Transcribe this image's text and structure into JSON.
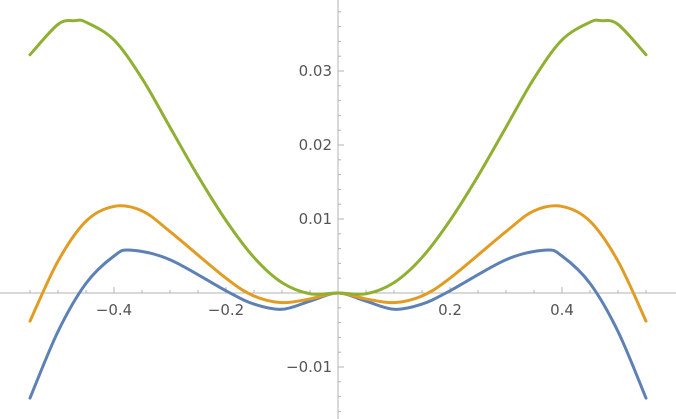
{
  "chart_data": {
    "type": "line",
    "title": "",
    "xlabel": "",
    "ylabel": "",
    "xlim": [
      -0.55,
      0.55
    ],
    "ylim": [
      -0.0165,
      0.0395
    ],
    "grid": false,
    "x_ticks": [
      {
        "value": -0.4,
        "label": "−0.4"
      },
      {
        "value": -0.2,
        "label": "−0.2"
      },
      {
        "value": 0.2,
        "label": "0.2"
      },
      {
        "value": 0.4,
        "label": "0.4"
      }
    ],
    "y_ticks": [
      {
        "value": -0.01,
        "label": "−0.01"
      },
      {
        "value": 0.01,
        "label": "0.01"
      },
      {
        "value": 0.02,
        "label": "0.02"
      },
      {
        "value": 0.03,
        "label": "0.03"
      }
    ],
    "series": [
      {
        "color": "#5e81b5",
        "x": [
          -0.55,
          -0.5,
          -0.45,
          -0.4,
          -0.37,
          -0.3,
          -0.2,
          -0.15,
          -0.1,
          -0.05,
          0,
          0.05,
          0.1,
          0.15,
          0.2,
          0.3,
          0.37,
          0.4,
          0.45,
          0.5,
          0.55
        ],
        "y": [
          -0.0142,
          -0.0052,
          0.0013,
          0.005,
          0.0058,
          0.0045,
          0.0003,
          -0.0015,
          -0.0022,
          -0.0011,
          0,
          -0.0011,
          -0.0022,
          -0.0015,
          0.0003,
          0.0045,
          0.0058,
          0.005,
          0.0013,
          -0.0052,
          -0.0142
        ]
      },
      {
        "color": "#e19c24",
        "x": [
          -0.55,
          -0.5,
          -0.45,
          -0.4,
          -0.35,
          -0.3,
          -0.2,
          -0.15,
          -0.1,
          -0.05,
          0,
          0.05,
          0.1,
          0.15,
          0.2,
          0.3,
          0.35,
          0.4,
          0.45,
          0.5,
          0.55
        ],
        "y": [
          -0.0038,
          0.0043,
          0.0097,
          0.0117,
          0.0111,
          0.0083,
          0.002,
          -0.0004,
          -0.0013,
          -0.0008,
          0,
          -0.0008,
          -0.0013,
          -0.0004,
          0.002,
          0.0083,
          0.0111,
          0.0117,
          0.0097,
          0.0043,
          -0.0038
        ]
      },
      {
        "color": "#8fb032",
        "x": [
          -0.55,
          -0.5,
          -0.47,
          -0.45,
          -0.4,
          -0.35,
          -0.3,
          -0.25,
          -0.2,
          -0.15,
          -0.1,
          -0.05,
          0,
          0.05,
          0.1,
          0.15,
          0.2,
          0.25,
          0.3,
          0.35,
          0.4,
          0.45,
          0.47,
          0.5,
          0.55
        ],
        "y": [
          0.0322,
          0.0363,
          0.0368,
          0.0366,
          0.0342,
          0.029,
          0.0224,
          0.0158,
          0.0098,
          0.0048,
          0.0014,
          -0.0001,
          0,
          -0.0001,
          0.0014,
          0.0048,
          0.0098,
          0.0158,
          0.0224,
          0.029,
          0.0342,
          0.0366,
          0.0368,
          0.0363,
          0.0322
        ]
      }
    ]
  }
}
